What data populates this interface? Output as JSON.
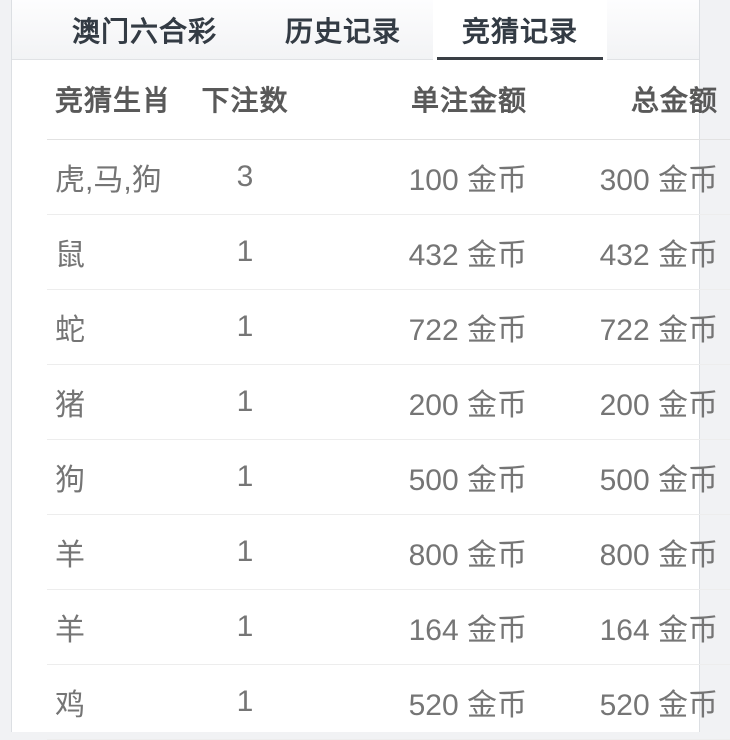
{
  "tabs": [
    {
      "label": "澳门六合彩",
      "active": false
    },
    {
      "label": "历史记录",
      "active": false
    },
    {
      "label": "竞猜记录",
      "active": true
    }
  ],
  "table": {
    "columns": [
      "竞猜生肖",
      "下注数",
      "单注金额",
      "总金额"
    ],
    "rows": [
      [
        "虎,马,狗",
        "3",
        "100 金币",
        "300 金币"
      ],
      [
        "鼠",
        "1",
        "432 金币",
        "432 金币"
      ],
      [
        "蛇",
        "1",
        "722 金币",
        "722 金币"
      ],
      [
        "猪",
        "1",
        "200 金币",
        "200 金币"
      ],
      [
        "狗",
        "1",
        "500 金币",
        "500 金币"
      ],
      [
        "羊",
        "1",
        "800 金币",
        "800 金币"
      ],
      [
        "羊",
        "1",
        "164 金币",
        "164 金币"
      ],
      [
        "鸡",
        "1",
        "520 金币",
        "520 金币"
      ]
    ]
  },
  "colors": {
    "accent_underline": "#3a3f45",
    "page_bg": "#f1f2f4",
    "panel_bg": "#ffffff",
    "tab_text": "#333b44",
    "header_text": "#595959",
    "cell_text": "#757575"
  }
}
